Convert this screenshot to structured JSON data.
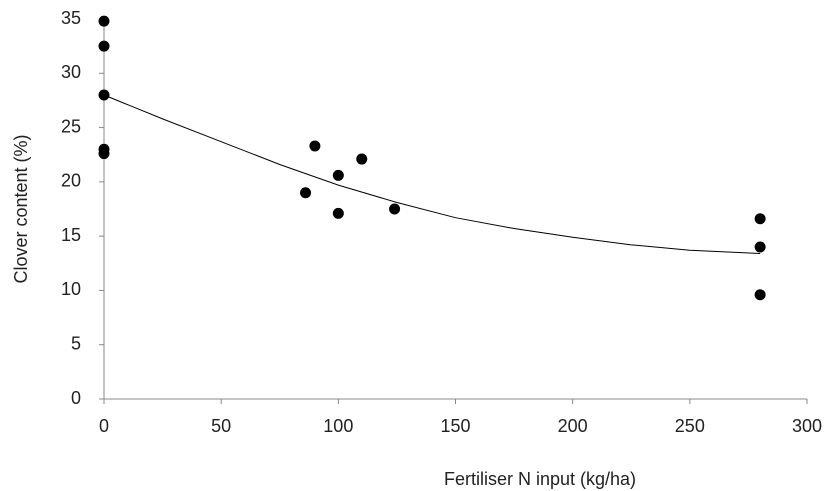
{
  "chart_data": {
    "type": "scatter",
    "x_label": "Fertiliser N input (kg/ha)",
    "y_label": "Clover content (%)",
    "xlim": [
      0,
      300
    ],
    "xticks": [
      0,
      50,
      100,
      150,
      200,
      250,
      300
    ],
    "ylim": [
      0,
      35
    ],
    "yticks": [
      0,
      5,
      10,
      15,
      20,
      25,
      30,
      35
    ],
    "grid": false,
    "series": [
      {
        "color": "#000000",
        "mode": "markers",
        "x": [
          0,
          0,
          0,
          0,
          0,
          86,
          90,
          100,
          100,
          110,
          124,
          280,
          280,
          280
        ],
        "values": [
          34.8,
          32.5,
          28,
          23,
          22.6,
          19,
          23.3,
          20.6,
          17.1,
          22.1,
          17.5,
          16.6,
          14,
          9.6
        ]
      },
      {
        "color": "#000000",
        "mode": "line",
        "x": [
          0,
          25,
          50,
          75,
          100,
          125,
          150,
          175,
          200,
          225,
          250,
          280
        ],
        "values": [
          28,
          25.8,
          23.7,
          21.6,
          19.7,
          18.1,
          16.7,
          15.7,
          14.9,
          14.2,
          13.7,
          13.4
        ]
      }
    ]
  }
}
